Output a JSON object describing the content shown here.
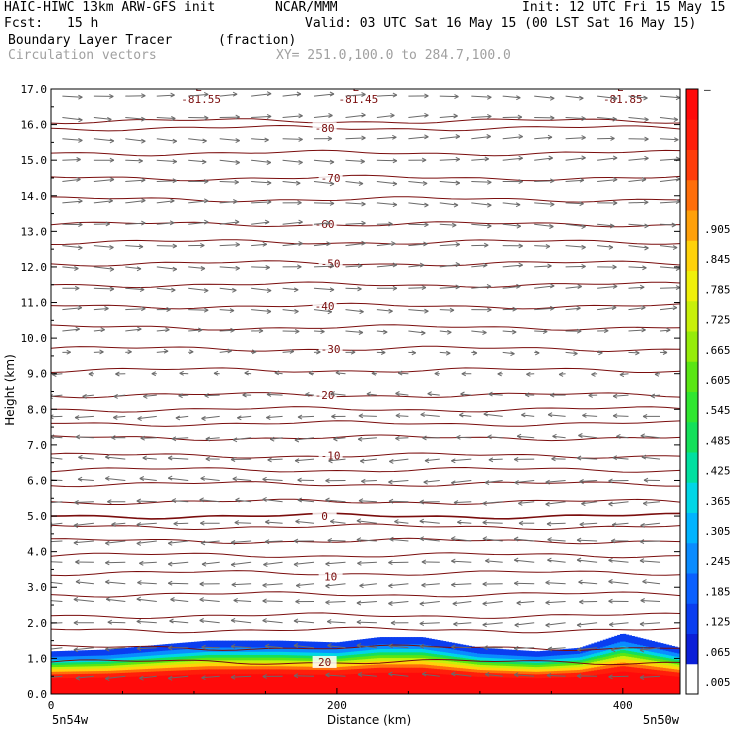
{
  "header": {
    "model": "HAIC-HIWC 13km ARW-GFS init",
    "org": "NCAR/MMM",
    "init": "Init: 12 UTC Fri 15 May 15",
    "fcst_label": "Fcst:",
    "fcst_value": "15 h",
    "valid": "Valid: 03 UTC Sat 16 May 15 (00 LST Sat 16 May 15)",
    "field": "Boundary Layer Tracer",
    "field_units": "(fraction)",
    "overlay": "Circulation vectors",
    "xy": "XY= 251.0,100.0 to 284.7,100.0"
  },
  "chart_data": {
    "type": "heatmap",
    "title": "Boundary Layer Tracer (fraction)",
    "xlabel": "Distance (km)",
    "ylabel": "Height (km)",
    "xlim": [
      0,
      440
    ],
    "ylim": [
      0,
      17
    ],
    "x_ticks": [
      "0",
      "200",
      "400"
    ],
    "x_tick_values": [
      0,
      200,
      400
    ],
    "y_ticks": [
      "0.0",
      "1.0",
      "2.0",
      "3.0",
      "4.0",
      "5.0",
      "6.0",
      "7.0",
      "8.0",
      "9.0",
      "10.0",
      "11.0",
      "12.0",
      "13.0",
      "14.0",
      "15.0",
      "16.0",
      "17.0"
    ],
    "endpoint_left": "5n54w",
    "endpoint_right": "5n50w",
    "grid": false,
    "tracer_top_profile": {
      "x": [
        0,
        40,
        80,
        110,
        160,
        200,
        230,
        260,
        300,
        340,
        370,
        400,
        440
      ],
      "top_km": [
        1.2,
        1.25,
        1.4,
        1.5,
        1.5,
        1.45,
        1.6,
        1.6,
        1.3,
        1.2,
        1.3,
        1.7,
        1.3
      ]
    },
    "colorbar": {
      "labels": [
        ".005",
        ".065",
        ".125",
        ".185",
        ".245",
        ".305",
        ".365",
        ".425",
        ".485",
        ".545",
        ".605",
        ".665",
        ".725",
        ".785",
        ".845",
        ".905",
        "–"
      ],
      "colors": [
        "#ffffff",
        "#0b1fd8",
        "#0a3ef0",
        "#0a60ff",
        "#0a8cff",
        "#00b4ff",
        "#00d6e6",
        "#00e0a0",
        "#14e05a",
        "#30e630",
        "#5ae614",
        "#96ec0a",
        "#c8f00a",
        "#f0f00a",
        "#ffd20a",
        "#ffa00a",
        "#ff6e0a",
        "#ff3c0a",
        "#ff1e0a",
        "#ff0a0a"
      ]
    },
    "contours": {
      "name": "temperature (C)",
      "labels": [
        "20",
        "10",
        "0",
        "-10",
        "-20",
        "-30",
        "-40",
        "-50",
        "-60",
        "-70",
        "-80"
      ],
      "label_heights_km": [
        0.9,
        3.3,
        5.0,
        6.7,
        8.4,
        9.7,
        10.9,
        12.1,
        13.2,
        14.5,
        15.9
      ],
      "levels_km": [
        0.9,
        1.3,
        1.8,
        2.2,
        2.8,
        3.4,
        3.9,
        4.3,
        4.7,
        5.0,
        5.4,
        5.9,
        6.3,
        6.7,
        7.2,
        7.6,
        8.0,
        8.4,
        9.1,
        9.7,
        10.3,
        10.9,
        11.5,
        12.1,
        12.7,
        13.2,
        13.9,
        14.5,
        15.2,
        15.9,
        16.1
      ],
      "lows": [
        {
          "label": "L",
          "value": "-81.55",
          "x": 105
        },
        {
          "label": "L",
          "value": "-81.45",
          "x": 215
        },
        {
          "label": "L",
          "value": "-81.85",
          "x": 400
        }
      ]
    },
    "wind_vectors": {
      "name": "Circulation vectors",
      "rows_km": [
        0.5,
        1.3,
        2.0,
        2.6,
        3.1,
        3.7,
        4.3,
        4.8,
        5.4,
        6.0,
        6.6,
        7.2,
        7.8,
        8.4,
        9.0,
        9.6,
        10.2,
        10.8,
        11.4,
        12.0,
        12.6,
        13.2,
        13.8,
        14.4,
        15.0,
        15.6,
        16.2,
        16.8
      ],
      "u_by_row": [
        -1.0,
        -1.0,
        -1.0,
        -1.0,
        -1.0,
        -1.0,
        -1.0,
        -0.8,
        -0.9,
        -0.9,
        -0.8,
        -0.7,
        -0.7,
        -0.5,
        -0.2,
        0.3,
        0.6,
        0.8,
        0.9,
        0.9,
        0.9,
        0.9,
        1.0,
        1.0,
        1.0,
        1.0,
        1.0,
        1.0
      ]
    }
  }
}
